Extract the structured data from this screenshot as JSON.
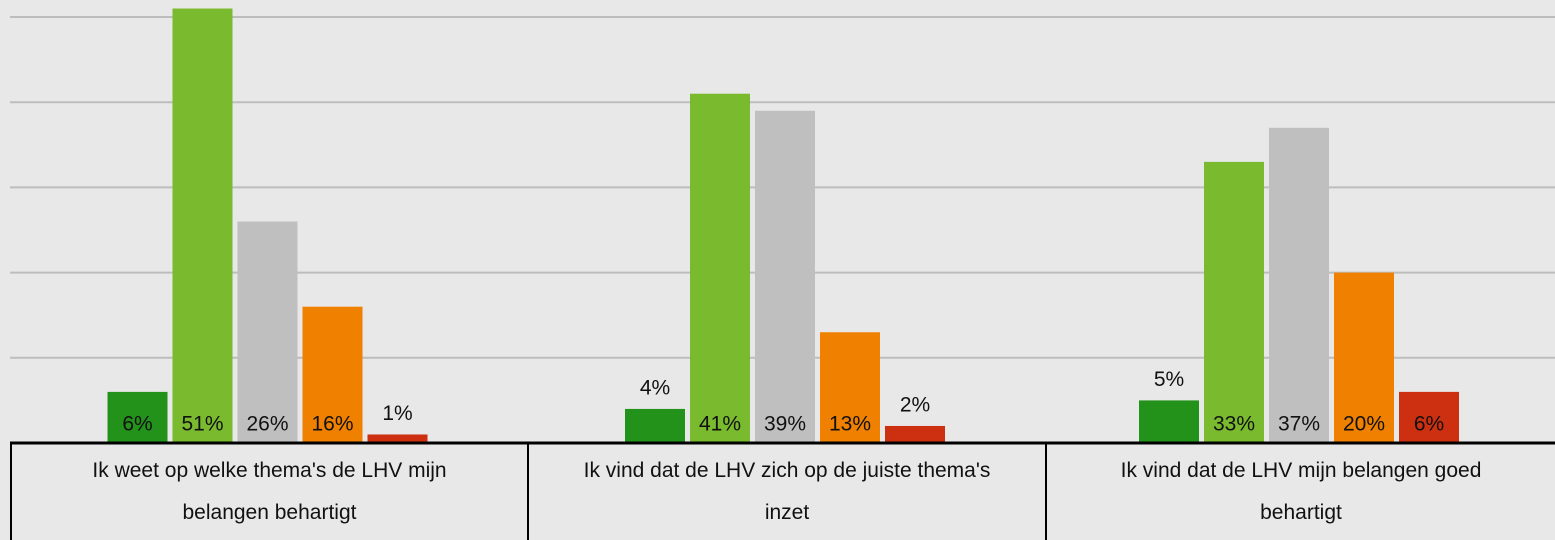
{
  "chart_data": {
    "type": "bar",
    "categories": [
      "Ik weet op welke thema's de LHV mijn belangen behartigt",
      "Ik vind dat de LHV zich op de juiste thema's inzet",
      "Ik vind dat de LHV mijn belangen goed behartigt"
    ],
    "series": [
      {
        "color": "#23921a",
        "values": [
          6,
          4,
          5
        ],
        "value_labels": [
          "6%",
          "4%",
          "5%"
        ]
      },
      {
        "color": "#7aba2e",
        "values": [
          51,
          41,
          33
        ],
        "value_labels": [
          "51%",
          "41%",
          "33%"
        ]
      },
      {
        "color": "#bfbfbf",
        "values": [
          26,
          39,
          37
        ],
        "value_labels": [
          "26%",
          "39%",
          "37%"
        ]
      },
      {
        "color": "#f08000",
        "values": [
          16,
          13,
          20
        ],
        "value_labels": [
          "16%",
          "13%",
          "20%"
        ]
      },
      {
        "color": "#cc3010",
        "values": [
          1,
          2,
          6
        ],
        "value_labels": [
          "1%",
          "2%",
          "6%"
        ]
      }
    ],
    "ylim": [
      0,
      52
    ],
    "yticks": [
      0,
      10,
      20,
      30,
      40,
      50
    ],
    "grid": true
  }
}
